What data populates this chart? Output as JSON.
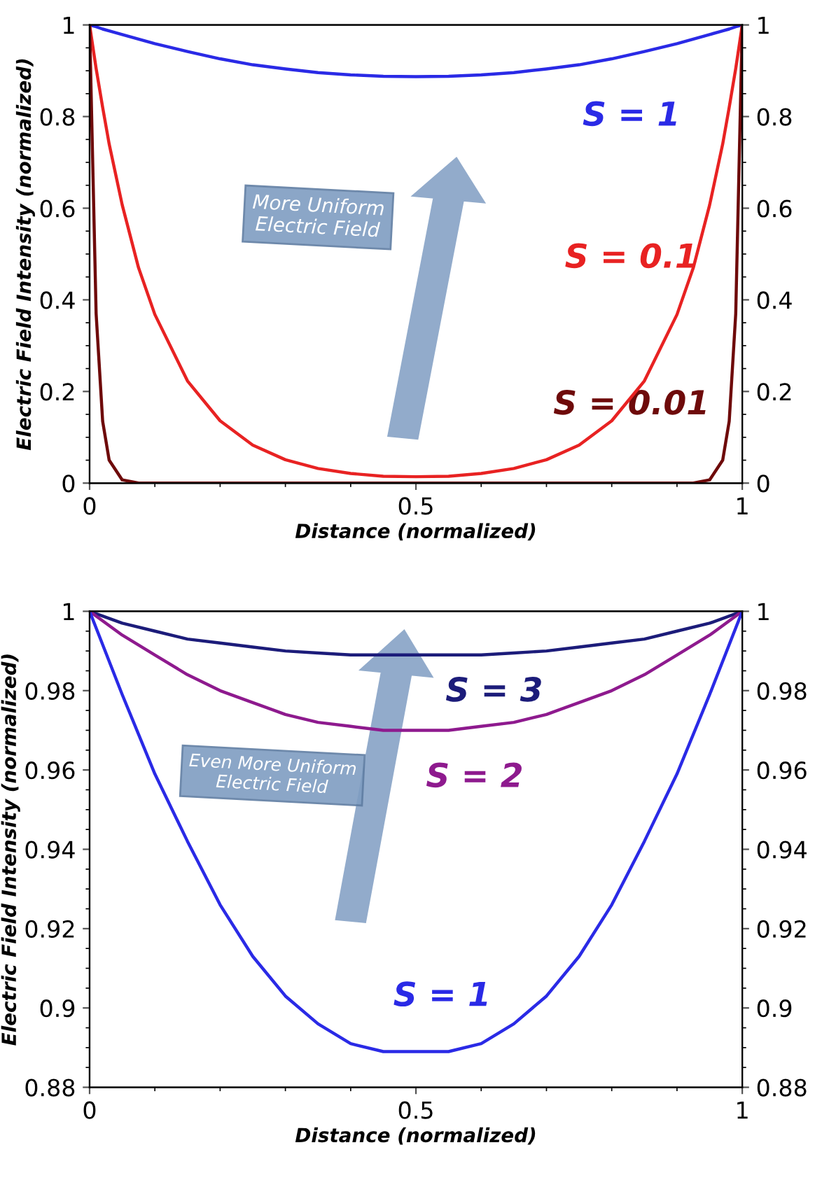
{
  "chart_data": [
    {
      "type": "line",
      "xlabel": "Distance (normalized)",
      "ylabel": "Electric Field Intensity (normalized)",
      "x": [
        0,
        0.01,
        0.02,
        0.03,
        0.05,
        0.075,
        0.1,
        0.15,
        0.2,
        0.25,
        0.3,
        0.35,
        0.4,
        0.45,
        0.5,
        0.55,
        0.6,
        0.65,
        0.7,
        0.75,
        0.8,
        0.85,
        0.9,
        0.925,
        0.95,
        0.97,
        0.98,
        0.99,
        1
      ],
      "series": [
        {
          "name": "S = 1",
          "color": "#2a2ae6",
          "values": [
            1,
            0.996,
            0.991,
            0.987,
            0.979,
            0.969,
            0.959,
            0.942,
            0.926,
            0.913,
            0.904,
            0.896,
            0.891,
            0.888,
            0.887,
            0.888,
            0.891,
            0.896,
            0.904,
            0.913,
            0.926,
            0.942,
            0.959,
            0.969,
            0.979,
            0.987,
            0.991,
            0.996,
            1
          ]
        },
        {
          "name": "S = 0.1",
          "color": "#e82222",
          "values": [
            1,
            0.905,
            0.82,
            0.74,
            0.607,
            0.47,
            0.368,
            0.223,
            0.136,
            0.083,
            0.051,
            0.032,
            0.021,
            0.015,
            0.014,
            0.015,
            0.021,
            0.032,
            0.051,
            0.083,
            0.136,
            0.223,
            0.368,
            0.47,
            0.607,
            0.74,
            0.82,
            0.905,
            1
          ]
        },
        {
          "name": "S = 0.01",
          "color": "#6e0a0a",
          "values": [
            1,
            0.37,
            0.135,
            0.05,
            0.007,
            0,
            0,
            0,
            0,
            0,
            0,
            0,
            0,
            0,
            0,
            0,
            0,
            0,
            0,
            0,
            0,
            0,
            0,
            0,
            0.007,
            0.05,
            0.135,
            0.37,
            1
          ]
        }
      ],
      "xlim": [
        0,
        1
      ],
      "xticks": [
        0,
        0.5,
        1
      ],
      "ylim": [
        0,
        1
      ],
      "yticks": [
        0,
        0.2,
        0.4,
        0.6,
        0.8,
        1
      ],
      "y2lim": [
        0,
        1
      ],
      "y2ticks": [
        0,
        0.2,
        0.4,
        0.6,
        0.8,
        1
      ],
      "grid": false,
      "legend": false,
      "annotations": [
        "More Uniform\nElectric Field"
      ]
    },
    {
      "type": "line",
      "xlabel": "Distance (normalized)",
      "ylabel": "Electric Field Intensity (normalized)",
      "x": [
        0,
        0.05,
        0.1,
        0.15,
        0.2,
        0.25,
        0.3,
        0.35,
        0.4,
        0.45,
        0.5,
        0.55,
        0.6,
        0.65,
        0.7,
        0.75,
        0.8,
        0.85,
        0.9,
        0.95,
        1
      ],
      "series": [
        {
          "name": "S = 3",
          "color": "#1c1c7a",
          "values": [
            1,
            0.997,
            0.995,
            0.993,
            0.992,
            0.991,
            0.99,
            0.9895,
            0.989,
            0.989,
            0.989,
            0.989,
            0.989,
            0.9895,
            0.99,
            0.991,
            0.992,
            0.993,
            0.995,
            0.997,
            1
          ]
        },
        {
          "name": "S = 2",
          "color": "#8e1a8e",
          "values": [
            1,
            0.994,
            0.989,
            0.984,
            0.98,
            0.977,
            0.974,
            0.972,
            0.971,
            0.97,
            0.97,
            0.97,
            0.971,
            0.972,
            0.974,
            0.977,
            0.98,
            0.984,
            0.989,
            0.994,
            1
          ]
        },
        {
          "name": "S = 1",
          "color": "#2a2ae6",
          "values": [
            1,
            0.979,
            0.959,
            0.942,
            0.926,
            0.913,
            0.903,
            0.896,
            0.891,
            0.889,
            0.889,
            0.889,
            0.891,
            0.896,
            0.903,
            0.913,
            0.926,
            0.942,
            0.959,
            0.979,
            1
          ]
        }
      ],
      "xlim": [
        0,
        1
      ],
      "xticks": [
        0,
        0.5,
        1
      ],
      "ylim": [
        0.88,
        1
      ],
      "yticks": [
        0.88,
        0.9,
        0.92,
        0.94,
        0.96,
        0.98,
        1
      ],
      "y2lim": [
        0.88,
        1
      ],
      "y2ticks": [
        0.88,
        0.9,
        0.92,
        0.94,
        0.96,
        0.98,
        1
      ],
      "grid": false,
      "legend": false,
      "annotations": [
        "Even More Uniform\nElectric Field"
      ]
    }
  ]
}
